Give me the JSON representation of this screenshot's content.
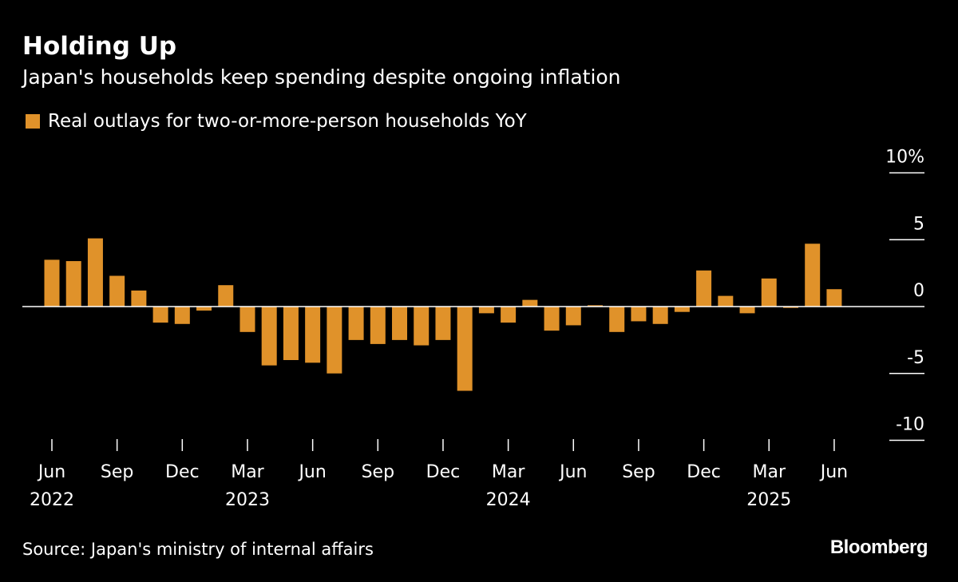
{
  "title": "Holding Up",
  "subtitle": "Japan's households keep spending despite ongoing inflation",
  "source": "Source: Japan's ministry of internal affairs",
  "logo": "Bloomberg",
  "colors": {
    "bar": "#e0922a",
    "background": "#000000",
    "text": "#ffffff"
  },
  "chart_data": {
    "type": "bar",
    "title": "Holding Up",
    "subtitle": "Japan's households keep spending despite ongoing inflation",
    "legend_position": "top-left",
    "series": [
      {
        "name": "Real outlays for two-or-more-person households YoY",
        "values": [
          3.5,
          3.4,
          5.1,
          2.3,
          1.2,
          -1.2,
          -1.3,
          -0.3,
          1.6,
          -1.9,
          -4.4,
          -4.0,
          -4.2,
          -5.0,
          -2.5,
          -2.8,
          -2.5,
          -2.9,
          -2.5,
          -6.3,
          -0.5,
          -1.2,
          0.5,
          -1.8,
          -1.4,
          0.1,
          -1.9,
          -1.1,
          -1.3,
          -0.4,
          2.7,
          0.8,
          -0.5,
          2.1,
          -0.1,
          4.7,
          1.3
        ]
      }
    ],
    "x_start": "2022-06",
    "x_end": "2025-06",
    "x_frequency": "monthly",
    "ylim": [
      -10,
      10
    ],
    "y_ticks": [
      10,
      5,
      0,
      -5,
      -10
    ],
    "y_tick_labels": [
      "10%",
      "5",
      "0",
      "-5",
      "-10"
    ],
    "y_axis_position": "right",
    "x_tick_labels": [
      {
        "month": "Jun",
        "year": "2022"
      },
      {
        "month": "Sep",
        "year": ""
      },
      {
        "month": "Dec",
        "year": ""
      },
      {
        "month": "Mar",
        "year": "2023"
      },
      {
        "month": "Jun",
        "year": ""
      },
      {
        "month": "Sep",
        "year": ""
      },
      {
        "month": "Dec",
        "year": ""
      },
      {
        "month": "Mar",
        "year": "2024"
      },
      {
        "month": "Jun",
        "year": ""
      },
      {
        "month": "Sep",
        "year": ""
      },
      {
        "month": "Dec",
        "year": ""
      },
      {
        "month": "Mar",
        "year": "2025"
      },
      {
        "month": "Jun",
        "year": ""
      }
    ],
    "grid": false
  }
}
